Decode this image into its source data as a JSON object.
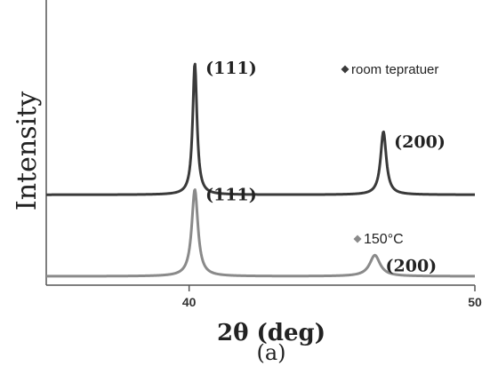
{
  "chart_data": {
    "type": "line",
    "title": "",
    "xlabel": "2θ (deg)",
    "ylabel": "Intensity",
    "xlim": [
      35,
      50
    ],
    "xticks": [
      40,
      50
    ],
    "caption": "(a)",
    "grid": false,
    "series": [
      {
        "name": "room tepratuer",
        "color": "#3a3a3a",
        "baseline": 0.62,
        "peaks": [
          {
            "x": 40.2,
            "height": 1.0,
            "width": 0.09,
            "label": "(111)"
          },
          {
            "x": 46.8,
            "height": 0.48,
            "width": 0.12,
            "label": "(200)"
          }
        ]
      },
      {
        "name": "150°C",
        "color": "#8a8a8a",
        "baseline": 0.0,
        "peaks": [
          {
            "x": 40.2,
            "height": 0.66,
            "width": 0.13,
            "label": "(111)"
          },
          {
            "x": 46.5,
            "height": 0.16,
            "width": 0.22,
            "label": "(200)"
          }
        ]
      }
    ]
  }
}
